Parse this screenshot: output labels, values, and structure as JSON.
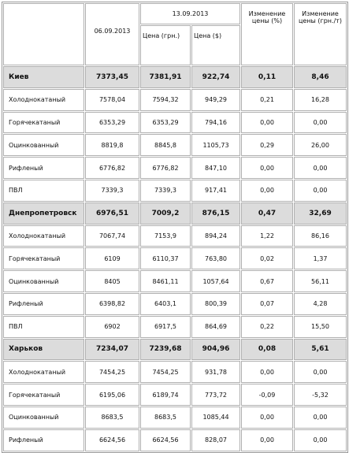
{
  "table": {
    "header": {
      "date1": "06.09.2013",
      "date2": "13.09.2013",
      "price_uah": "Цена (грн.)",
      "price_usd": "Цена ($)",
      "change_pct": "Изменение цены (%)",
      "change_uah": "Изменение цены (грн./т)"
    },
    "regions": [
      {
        "row": [
          "Киев",
          "7373,45",
          "7381,91",
          "922,74",
          "0,11",
          "8,46"
        ],
        "products": [
          [
            "Холоднокатаный",
            "7578,04",
            "7594,32",
            "949,29",
            "0,21",
            "16,28"
          ],
          [
            "Горячекатаный",
            "6353,29",
            "6353,29",
            "794,16",
            "0,00",
            "0,00"
          ],
          [
            "Оцинкованный",
            "8819,8",
            "8845,8",
            "1105,73",
            "0,29",
            "26,00"
          ],
          [
            "Рифленый",
            "6776,82",
            "6776,82",
            "847,10",
            "0,00",
            "0,00"
          ],
          [
            "ПВЛ",
            "7339,3",
            "7339,3",
            "917,41",
            "0,00",
            "0,00"
          ]
        ]
      },
      {
        "row": [
          "Днепропетровск",
          "6976,51",
          "7009,2",
          "876,15",
          "0,47",
          "32,69"
        ],
        "products": [
          [
            "Холоднокатаный",
            "7067,74",
            "7153,9",
            "894,24",
            "1,22",
            "86,16"
          ],
          [
            "Горячекатаный",
            "6109",
            "6110,37",
            "763,80",
            "0,02",
            "1,37"
          ],
          [
            "Оцинкованный",
            "8405",
            "8461,11",
            "1057,64",
            "0,67",
            "56,11"
          ],
          [
            "Рифленый",
            "6398,82",
            "6403,1",
            "800,39",
            "0,07",
            "4,28"
          ],
          [
            "ПВЛ",
            "6902",
            "6917,5",
            "864,69",
            "0,22",
            "15,50"
          ]
        ]
      },
      {
        "row": [
          "Харьков",
          "7234,07",
          "7239,68",
          "904,96",
          "0,08",
          "5,61"
        ],
        "products": [
          [
            "Холоднокатаный",
            "7454,25",
            "7454,25",
            "931,78",
            "0,00",
            "0,00"
          ],
          [
            "Горячекатаный",
            "6195,06",
            "6189,74",
            "773,72",
            "-0,09",
            "-5,32"
          ],
          [
            "Оцинкованный",
            "8683,5",
            "8683,5",
            "1085,44",
            "0,00",
            "0,00"
          ],
          [
            "Рифленый",
            "6624,56",
            "6624,56",
            "828,07",
            "0,00",
            "0,00"
          ]
        ]
      }
    ]
  }
}
